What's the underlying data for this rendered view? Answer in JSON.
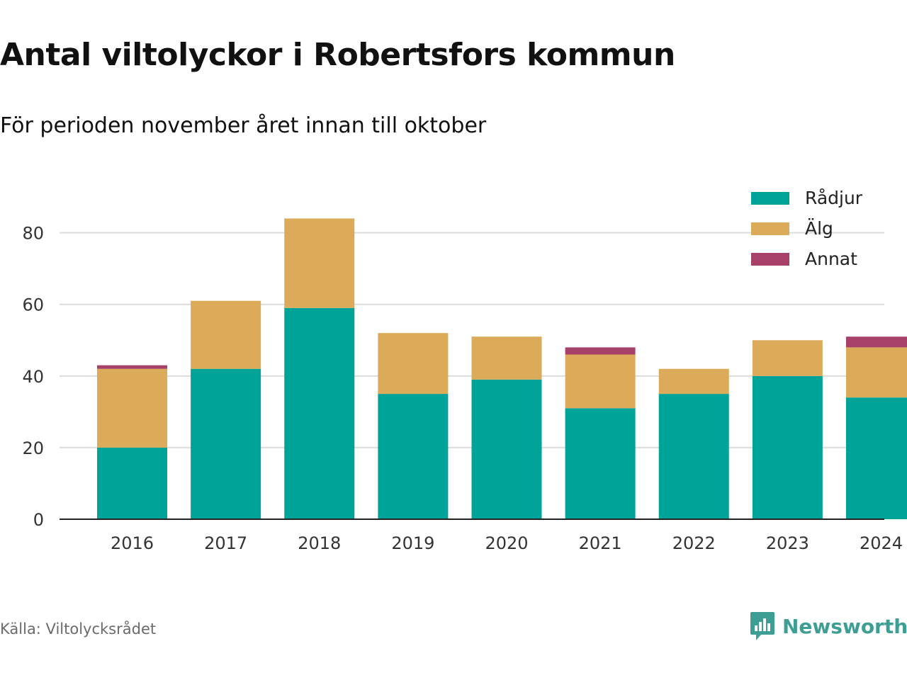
{
  "header": {
    "title": "Antal viltolyckor i Robertsfors kommun",
    "subtitle": "För perioden november året innan till oktober"
  },
  "footer": {
    "source": "Källa: Viltolycksrådet",
    "brand": "Newsworthy",
    "brand_icon": "newsworthy-logo-icon",
    "brand_color": "#3d9e93"
  },
  "chart_data": {
    "type": "bar",
    "stacked": true,
    "title": "Antal viltolyckor i Robertsfors kommun",
    "subtitle": "För perioden november året innan till oktober",
    "xlabel": "",
    "ylabel": "",
    "categories": [
      "2016",
      "2017",
      "2018",
      "2019",
      "2020",
      "2021",
      "2022",
      "2023",
      "2024"
    ],
    "series": [
      {
        "name": "Rådjur",
        "color": "#00a398",
        "values": [
          20,
          42,
          59,
          35,
          39,
          31,
          35,
          40,
          34
        ]
      },
      {
        "name": "Älg",
        "color": "#dbab59",
        "values": [
          22,
          19,
          25,
          17,
          12,
          15,
          7,
          10,
          14
        ]
      },
      {
        "name": "Annat",
        "color": "#a8416a",
        "values": [
          1,
          0,
          0,
          0,
          0,
          2,
          0,
          0,
          3
        ]
      }
    ],
    "ylim": [
      0,
      92
    ],
    "yticks": [
      0,
      20,
      40,
      60,
      80
    ],
    "ytick_labels": [
      "0",
      "20",
      "40",
      "60",
      "80"
    ],
    "grid": true,
    "legend": "top-right"
  }
}
